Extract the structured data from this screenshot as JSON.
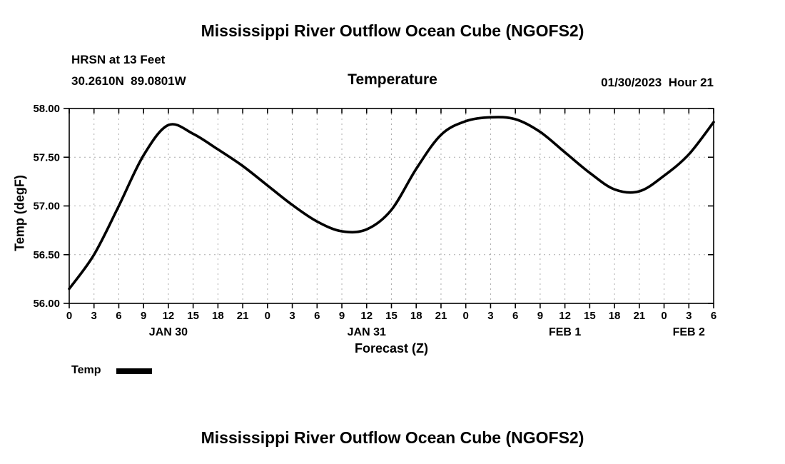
{
  "page": {
    "top_title": "Mississippi River Outflow Ocean Cube (NGOFS2)",
    "bottom_title": "Mississippi River Outflow Ocean Cube (NGOFS2)",
    "station_line1": "HRSN at 13 Feet",
    "station_line2": "30.2610N  89.0801W",
    "plot_title": "Temperature",
    "datetime_label": "01/30/2023  Hour 21",
    "legend_label": "Temp"
  },
  "chart_data": {
    "type": "line",
    "title": "Temperature",
    "xlabel": "Forecast (Z)",
    "ylabel": "Temp (degF)",
    "ylim": [
      56.0,
      58.0
    ],
    "x_range": [
      0,
      78
    ],
    "grid": "dashed",
    "legend_position": "bottom-left",
    "line_color": "#000000",
    "grid_color": "#aaaaaa",
    "y_ticks": [
      {
        "value": 56.0,
        "label": "56.00"
      },
      {
        "value": 56.5,
        "label": "56.50"
      },
      {
        "value": 57.0,
        "label": "57.00"
      },
      {
        "value": 57.5,
        "label": "57.50"
      },
      {
        "value": 58.0,
        "label": "58.00"
      }
    ],
    "x_ticks": [
      {
        "hour": 0,
        "label": "0"
      },
      {
        "hour": 3,
        "label": "3"
      },
      {
        "hour": 6,
        "label": "6"
      },
      {
        "hour": 9,
        "label": "9"
      },
      {
        "hour": 12,
        "label": "12"
      },
      {
        "hour": 15,
        "label": "15"
      },
      {
        "hour": 18,
        "label": "18"
      },
      {
        "hour": 21,
        "label": "21"
      },
      {
        "hour": 24,
        "label": "0"
      },
      {
        "hour": 27,
        "label": "3"
      },
      {
        "hour": 30,
        "label": "6"
      },
      {
        "hour": 33,
        "label": "9"
      },
      {
        "hour": 36,
        "label": "12"
      },
      {
        "hour": 39,
        "label": "15"
      },
      {
        "hour": 42,
        "label": "18"
      },
      {
        "hour": 45,
        "label": "21"
      },
      {
        "hour": 48,
        "label": "0"
      },
      {
        "hour": 51,
        "label": "3"
      },
      {
        "hour": 54,
        "label": "6"
      },
      {
        "hour": 57,
        "label": "9"
      },
      {
        "hour": 60,
        "label": "12"
      },
      {
        "hour": 63,
        "label": "15"
      },
      {
        "hour": 66,
        "label": "18"
      },
      {
        "hour": 69,
        "label": "21"
      },
      {
        "hour": 72,
        "label": "0"
      },
      {
        "hour": 75,
        "label": "3"
      },
      {
        "hour": 78,
        "label": "6"
      }
    ],
    "day_labels": [
      {
        "label": "JAN 30",
        "hour": 12
      },
      {
        "label": "JAN 31",
        "hour": 36
      },
      {
        "label": "FEB 1",
        "hour": 60
      },
      {
        "label": "FEB 2",
        "hour": 75
      }
    ],
    "series": [
      {
        "name": "Temp",
        "color": "#000000",
        "x": [
          0,
          3,
          6,
          9,
          12,
          15,
          18,
          21,
          24,
          27,
          30,
          33,
          36,
          39,
          42,
          45,
          48,
          51,
          54,
          57,
          60,
          63,
          66,
          69,
          72,
          75,
          78
        ],
        "y": [
          56.15,
          56.5,
          57.0,
          57.52,
          57.83,
          57.74,
          57.58,
          57.41,
          57.21,
          57.01,
          56.84,
          56.74,
          56.76,
          56.96,
          57.38,
          57.73,
          57.87,
          57.91,
          57.89,
          57.76,
          57.55,
          57.34,
          57.17,
          57.15,
          57.31,
          57.53,
          57.86
        ]
      }
    ]
  }
}
